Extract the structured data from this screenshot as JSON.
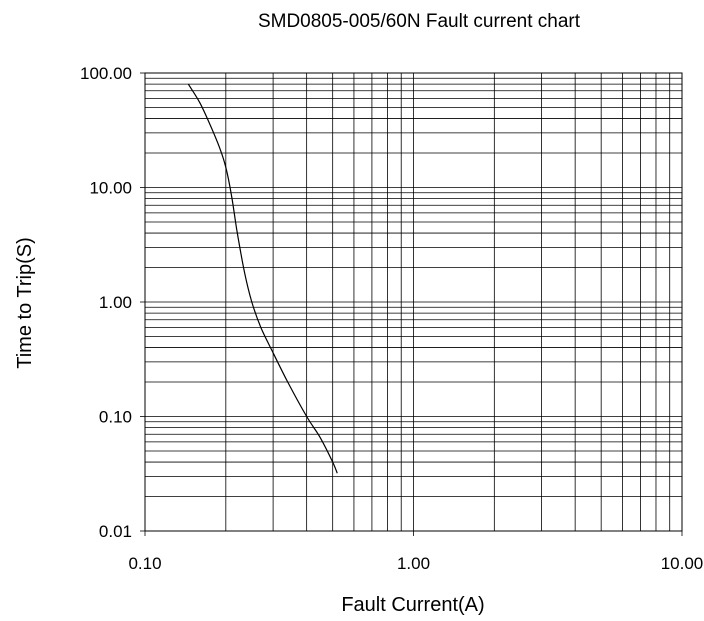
{
  "chart_data": {
    "type": "line",
    "title": "SMD0805-005/60N Fault current chart",
    "xlabel": "Fault  Current(A)",
    "ylabel": "Time to Trip(S)",
    "xscale": "log",
    "yscale": "log",
    "xlim": [
      0.1,
      10
    ],
    "ylim": [
      0.01,
      100
    ],
    "grid": true,
    "x_ticks": [
      {
        "value": 0.1,
        "label": "0.10"
      },
      {
        "value": 1,
        "label": "1.00"
      },
      {
        "value": 10,
        "label": "10.00"
      }
    ],
    "y_ticks": [
      {
        "value": 100,
        "label": "100.00"
      },
      {
        "value": 10,
        "label": "10.00"
      },
      {
        "value": 1,
        "label": "1.00"
      },
      {
        "value": 0.1,
        "label": "0.10"
      },
      {
        "value": 0.01,
        "label": "0.01"
      }
    ],
    "series": [
      {
        "x": [
          0.145,
          0.16,
          0.175,
          0.19,
          0.2,
          0.21,
          0.22,
          0.235,
          0.25,
          0.27,
          0.3,
          0.34,
          0.4,
          0.45,
          0.5,
          0.52
        ],
        "y": [
          80,
          55,
          35,
          22,
          15,
          8.5,
          4.2,
          1.8,
          1.0,
          0.6,
          0.36,
          0.2,
          0.1,
          0.065,
          0.04,
          0.032
        ]
      }
    ]
  }
}
